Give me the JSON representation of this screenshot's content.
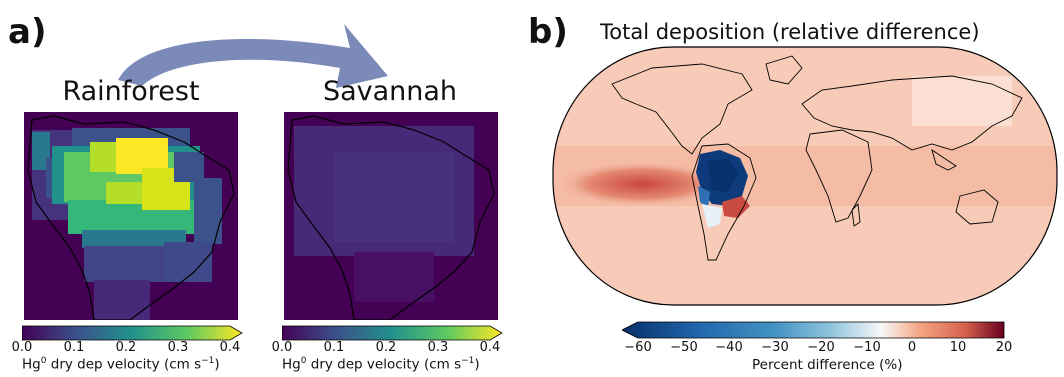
{
  "panel_a": {
    "letter": "a)",
    "maps": [
      {
        "title": "Rainforest"
      },
      {
        "title": "Savannah"
      }
    ],
    "colorbar": {
      "ticks": [
        "0.0",
        "0.1",
        "0.2",
        "0.3",
        "0.4"
      ],
      "label_main": "Hg",
      "label_sup": "0",
      "label_rest": " dry dep velocity (cm s",
      "label_unit_sup": "−1",
      "label_close": ")",
      "range": [
        0,
        0.4
      ],
      "colormap": "viridis"
    }
  },
  "panel_b": {
    "letter": "b)",
    "title": "Total deposition (relative difference)",
    "colorbar": {
      "ticks": [
        "−60",
        "−50",
        "−40",
        "−30",
        "−20",
        "−10",
        "0",
        "10",
        "20"
      ],
      "label": "Percent difference (%)",
      "range": [
        -60,
        20
      ],
      "colormap": "RdBu_r"
    }
  },
  "arrow_color": "#7b8ab8"
}
